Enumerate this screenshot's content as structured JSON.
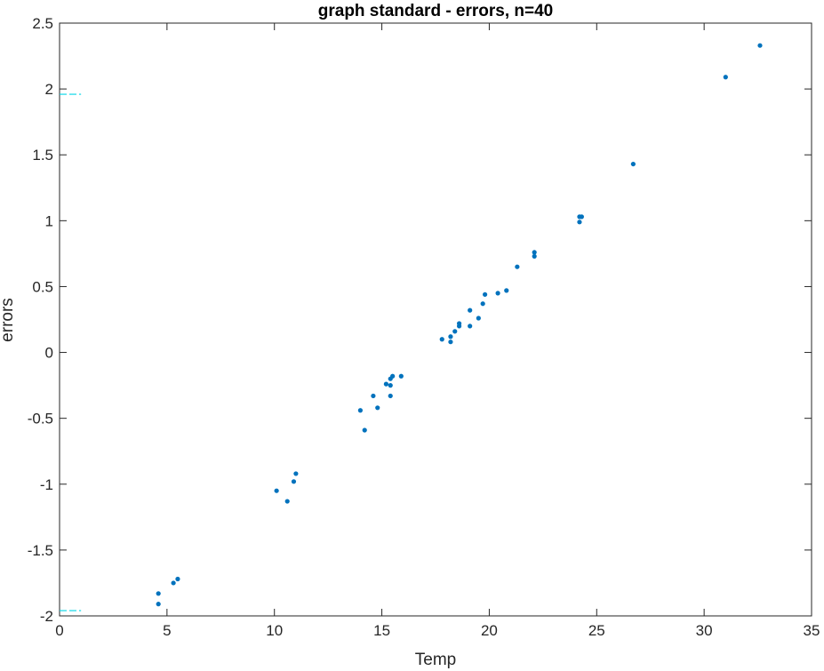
{
  "chart_data": {
    "type": "scatter",
    "title": "graph standard - errors, n=40",
    "xlabel": "Temp",
    "ylabel": "errors",
    "xlim": [
      0,
      35
    ],
    "ylim": [
      -2,
      2.5
    ],
    "xticks": [
      0,
      5,
      10,
      15,
      20,
      25,
      30,
      35
    ],
    "xtick_labels": [
      "0",
      "5",
      "10",
      "15",
      "20",
      "25",
      "30",
      "35"
    ],
    "yticks": [
      -2,
      -1.5,
      -1,
      -0.5,
      0,
      0.5,
      1,
      1.5,
      2,
      2.5
    ],
    "ytick_labels": [
      "-2",
      "-1.5",
      "-1",
      "-0.5",
      "0",
      "0.5",
      "1",
      "1.5",
      "2",
      "2.5"
    ],
    "grid": false,
    "points": [
      {
        "x": 4.6,
        "y": -1.83
      },
      {
        "x": 4.6,
        "y": -1.91
      },
      {
        "x": 5.3,
        "y": -1.75
      },
      {
        "x": 5.5,
        "y": -1.72
      },
      {
        "x": 10.1,
        "y": -1.05
      },
      {
        "x": 10.6,
        "y": -1.13
      },
      {
        "x": 10.9,
        "y": -0.98
      },
      {
        "x": 11.0,
        "y": -0.92
      },
      {
        "x": 14.0,
        "y": -0.44
      },
      {
        "x": 14.2,
        "y": -0.59
      },
      {
        "x": 14.6,
        "y": -0.33
      },
      {
        "x": 14.8,
        "y": -0.42
      },
      {
        "x": 15.2,
        "y": -0.24
      },
      {
        "x": 15.4,
        "y": -0.25
      },
      {
        "x": 15.4,
        "y": -0.33
      },
      {
        "x": 15.4,
        "y": -0.2
      },
      {
        "x": 15.5,
        "y": -0.18
      },
      {
        "x": 15.9,
        "y": -0.18
      },
      {
        "x": 17.8,
        "y": 0.1
      },
      {
        "x": 18.2,
        "y": 0.12
      },
      {
        "x": 18.2,
        "y": 0.08
      },
      {
        "x": 18.4,
        "y": 0.16
      },
      {
        "x": 18.6,
        "y": 0.2
      },
      {
        "x": 18.6,
        "y": 0.22
      },
      {
        "x": 19.1,
        "y": 0.2
      },
      {
        "x": 19.1,
        "y": 0.32
      },
      {
        "x": 19.5,
        "y": 0.26
      },
      {
        "x": 19.7,
        "y": 0.37
      },
      {
        "x": 19.8,
        "y": 0.44
      },
      {
        "x": 20.4,
        "y": 0.45
      },
      {
        "x": 20.8,
        "y": 0.47
      },
      {
        "x": 21.3,
        "y": 0.65
      },
      {
        "x": 22.1,
        "y": 0.73
      },
      {
        "x": 22.1,
        "y": 0.76
      },
      {
        "x": 24.2,
        "y": 0.99
      },
      {
        "x": 24.2,
        "y": 1.03
      },
      {
        "x": 24.3,
        "y": 1.03
      },
      {
        "x": 26.7,
        "y": 1.43
      },
      {
        "x": 31.0,
        "y": 2.09
      },
      {
        "x": 32.6,
        "y": 2.33
      }
    ],
    "reference_lines": [
      {
        "y": 1.96,
        "x": [
          0,
          1
        ],
        "color": "#00d5e6",
        "style": "dashed"
      },
      {
        "y": -1.96,
        "x": [
          0,
          1
        ],
        "color": "#00d5e6",
        "style": "dashed"
      }
    ],
    "colors": {
      "marker": "#0072bd",
      "axis": "#262626",
      "reference": "#00d5e6"
    }
  }
}
